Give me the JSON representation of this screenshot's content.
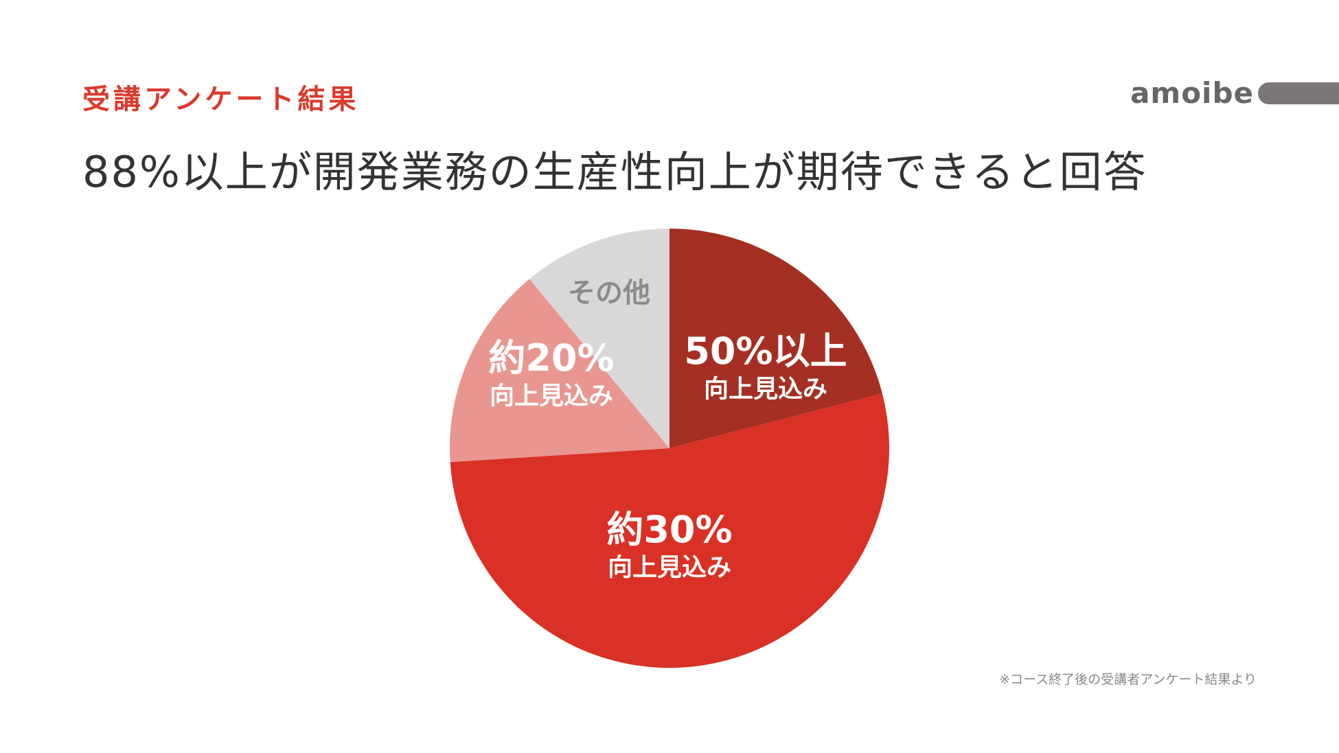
{
  "header": {
    "label": "受講アンケート結果",
    "title": "88%以上が開発業務の生産性向上が期待できると回答"
  },
  "brand": {
    "name": "amoibe"
  },
  "footnote": "※コース終了後の受講者アンケート結果より",
  "chart_data": {
    "type": "pie",
    "unit": "%",
    "start_angle_deg": 0,
    "direction": "clockwise",
    "slices": [
      {
        "label": "50%以上",
        "sublabel": "向上見込み",
        "value": 21,
        "color": "#a52f23",
        "text_color": "#ffffff"
      },
      {
        "label": "約30%",
        "sublabel": "向上見込み",
        "value": 53,
        "color": "#d93125",
        "text_color": "#ffffff"
      },
      {
        "label": "約20%",
        "sublabel": "向上見込み",
        "value": 15,
        "color": "#e99690",
        "text_color": "#ffffff"
      },
      {
        "label": "その他",
        "sublabel": "",
        "value": 11,
        "color": "#d9d7d8",
        "text_color": "#8c8a8b"
      }
    ]
  }
}
